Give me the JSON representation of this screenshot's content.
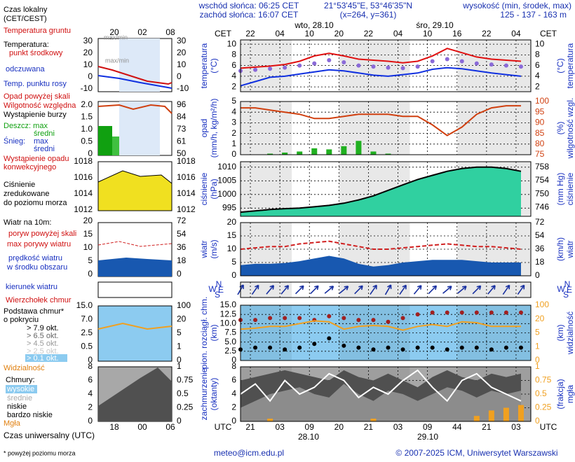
{
  "header": {
    "sunrise": "wschód słońca: 06:25 CET",
    "sunset": "zachód słońca: 16:07 CET",
    "coords": "21°53'45\"E, 53°46'35\"N",
    "grid": "(x=264, y=361)",
    "elevation_title": "wysokość (min, środek, max)",
    "elevation": "125 - 137 - 163 m",
    "days_top": [
      "wto, 28.10",
      "śro, 29.10"
    ],
    "days_bottom": [
      "28.10",
      "29.10"
    ]
  },
  "footer": {
    "email": "meteo@icm.edu.pl",
    "copyright": "© 2007-2025 ICM, Uniwersytet Warszawski",
    "note": "* powyżej poziomu morza"
  },
  "legend": {
    "local_time": [
      "Czas lokalny",
      "(CET/CEST)"
    ],
    "local_ticks": [
      "20",
      "02",
      "08"
    ],
    "utc_time": "Czas uniwersalny (UTC)",
    "utc_ticks": [
      "18",
      "00",
      "06"
    ],
    "temperature": [
      "Temperatura gruntu",
      "max/min",
      "Temperatura:",
      "punkt środkowy",
      "max/min",
      "odczuwana",
      "Temp. punktu rosy"
    ],
    "precipitation": [
      "Opad powyżej skali",
      "Wilgotność względna",
      "Wystąpienie burzy",
      "Deszcz: max",
      "średni",
      "Śnieg:",
      "max",
      "średni",
      "Wystąpienie opadu",
      "konwekcyjnego"
    ],
    "pressure": [
      "Ciśnienie",
      "zredukowane",
      "do poziomu morza"
    ],
    "wind": [
      "Wiatr na 10m:",
      "poryw powyżej skali",
      "max porywy wiatru",
      "prędkość wiatru",
      "w środku obszaru"
    ],
    "direction": "kierunek wiatru",
    "cloud_base": [
      "Wierzchołek chmur",
      "Podstawa chmur*",
      "o pokryciu",
      "> 7.9 okt.",
      "> 6.5 okt.",
      "> 4.5 okt.",
      "> 2.5 okt.",
      "> 0.1 okt.",
      "Widzialność"
    ],
    "clouds": [
      "Chmury:",
      "wysokie",
      "średnie",
      "niskie",
      "bardzo niskie",
      "Mgła"
    ],
    "ticks": [
      {
        "left": [
          "30",
          "20",
          "10",
          "0",
          "-10"
        ],
        "right": [
          "30",
          "20",
          "10",
          "0",
          "-10"
        ]
      },
      {
        "left": [
          "2.0",
          "1.5",
          "1.0",
          "0.5",
          "0"
        ],
        "right": [
          "96",
          "84",
          "73",
          "61",
          "50"
        ]
      },
      {
        "left": [
          "1018",
          "1016",
          "1014",
          "1012"
        ],
        "right": [
          "1018",
          "1016",
          "1014",
          "1012"
        ]
      },
      {
        "left": [
          "20",
          "15",
          "10",
          "5",
          "0"
        ],
        "right": [
          "72",
          "54",
          "36",
          "18",
          "0"
        ]
      },
      {
        "left": [
          "15.0",
          "7.0",
          "2.5",
          "0.5",
          "0"
        ],
        "right": [
          "100",
          "20",
          "5",
          "1",
          "0"
        ]
      },
      {
        "left": [
          "8",
          "6",
          "4",
          "2",
          "0"
        ],
        "right": [
          "1",
          "0.75",
          "0.5",
          "0.25",
          "0"
        ]
      }
    ]
  },
  "chart_data": [
    {
      "type": "line",
      "ylabel": [
        "temperatura",
        "(°C)"
      ],
      "ylabel2": [
        "(°C)",
        "temperatura"
      ],
      "xlabel": "CET",
      "x": [
        0,
        3,
        6,
        9,
        12,
        15,
        18,
        21,
        24,
        27,
        30,
        33,
        36,
        39,
        42,
        45,
        48,
        51,
        54,
        57
      ],
      "xlim": [
        0,
        59
      ],
      "xticks": [
        {
          "value": 2,
          "label": "22"
        },
        {
          "value": 8,
          "label": "04"
        },
        {
          "value": 14,
          "label": "10"
        },
        20,
        {
          "value": 26,
          "label": "22"
        },
        {
          "value": 32,
          "label": "04"
        },
        {
          "value": 38,
          "label": "10"
        },
        {
          "value": 44,
          "label": "16"
        },
        {
          "value": 50,
          "label": "22"
        },
        {
          "value": 56,
          "label": "04"
        }
      ],
      "ylim": [
        1.1,
        10.8
      ],
      "yticks": [
        2,
        4,
        6,
        8,
        10
      ],
      "grid": true,
      "series": [
        {
          "type": "line",
          "color": "#e01010",
          "values": [
            5.5,
            5.7,
            5.9,
            6.2,
            6.8,
            7.8,
            8.3,
            7.8,
            7.2,
            7.0,
            6.8,
            6.5,
            6.8,
            7.8,
            9.2,
            8.4,
            7.6,
            7.2,
            7.0,
            6.8
          ]
        },
        {
          "type": "dots",
          "color": "#8a6ad8",
          "values": [
            5.0,
            5.2,
            5.4,
            5.6,
            6.0,
            6.4,
            7.0,
            6.6,
            6.0,
            5.8,
            5.6,
            5.5,
            5.8,
            6.8,
            7.2,
            6.8,
            6.4,
            6.2,
            6.0,
            5.8
          ]
        },
        {
          "type": "line",
          "color": "#1030e0",
          "values": [
            2.2,
            3.0,
            3.8,
            4.0,
            4.4,
            4.8,
            5.2,
            5.0,
            4.6,
            4.2,
            4.0,
            4.3,
            4.6,
            5.3,
            5.6,
            5.4,
            5.0,
            4.6,
            4.3,
            4.0
          ]
        }
      ]
    },
    {
      "type": "bar",
      "ylabel": [
        "opad",
        "(mm/h, kg/m²/h)"
      ],
      "ylabel2": [
        "(%)",
        "wilgotność wzgl."
      ],
      "x": [
        0,
        3,
        6,
        9,
        12,
        15,
        18,
        21,
        24,
        27,
        30,
        33,
        36,
        39,
        42,
        45,
        48,
        51,
        54,
        57
      ],
      "xlim": [
        0,
        59
      ],
      "ylim": [
        0,
        5
      ],
      "yticks": [
        0,
        1,
        2,
        3,
        4,
        5
      ],
      "y2lim": [
        75,
        100
      ],
      "y2ticks": [
        75,
        80,
        85,
        90,
        95,
        100
      ],
      "grid": true,
      "series": [
        {
          "type": "bar",
          "color": "#20b020",
          "values": [
            0,
            0,
            0.1,
            0.2,
            0.3,
            0.6,
            0.5,
            0.8,
            1.3,
            0.3,
            0.1,
            0,
            0,
            0,
            0,
            0,
            0,
            0,
            0,
            0
          ]
        },
        {
          "type": "line",
          "color": "#d04010",
          "axis": "y2",
          "values": [
            97,
            97,
            96,
            95,
            94,
            92,
            92,
            93,
            94,
            94,
            94,
            93,
            93,
            89,
            84,
            88,
            94,
            97,
            98,
            98
          ]
        }
      ]
    },
    {
      "type": "area",
      "ylabel": [
        "ciśnienie",
        "(hPa)"
      ],
      "ylabel2": [
        "(mm Hg)",
        "ciśnienie"
      ],
      "x": [
        0,
        3,
        6,
        9,
        12,
        15,
        18,
        21,
        24,
        27,
        30,
        33,
        36,
        39,
        42,
        45,
        48,
        51,
        54,
        57
      ],
      "xlim": [
        0,
        59
      ],
      "ylim": [
        992,
        1012
      ],
      "yticks": [
        995,
        1000,
        1005,
        1010
      ],
      "y2lim": [
        743.4,
        759.6
      ],
      "y2ticks": [
        746,
        750,
        754,
        758
      ],
      "grid": true,
      "series": [
        {
          "type": "area",
          "color": "#30d0a0",
          "edge": "#000000",
          "values": [
            993.5,
            994,
            994.5,
            994.8,
            995,
            995.5,
            996,
            996.8,
            998,
            999.5,
            1001.5,
            1003.5,
            1005.5,
            1007,
            1008.5,
            1009.5,
            1010,
            1010,
            1009.5,
            1008.5
          ]
        }
      ]
    },
    {
      "type": "area",
      "ylabel": [
        "wiatr",
        "(m/s)"
      ],
      "ylabel2": [
        "(km/h)",
        "wiatr"
      ],
      "x": [
        0,
        3,
        6,
        9,
        12,
        15,
        18,
        21,
        24,
        27,
        30,
        33,
        36,
        39,
        42,
        45,
        48,
        51,
        54,
        57
      ],
      "xlim": [
        0,
        59
      ],
      "ylim": [
        0,
        20
      ],
      "yticks": [
        0,
        5,
        10,
        15,
        20
      ],
      "y2lim": [
        0,
        72
      ],
      "y2ticks": [
        0,
        18,
        36,
        54,
        72
      ],
      "grid": true,
      "series": [
        {
          "type": "area",
          "color": "#1858b0",
          "values": [
            4,
            4.5,
            4.5,
            4.8,
            5.5,
            6.5,
            7.5,
            6.5,
            4.5,
            3.5,
            4,
            5,
            5.5,
            6,
            6,
            6,
            5.5,
            5,
            5,
            5
          ]
        },
        {
          "type": "line",
          "color": "#d02020",
          "dash": true,
          "values": [
            10,
            10.5,
            11,
            11,
            12,
            12.5,
            13,
            12,
            11,
            10,
            10,
            10.5,
            11,
            11.5,
            12,
            11.5,
            11,
            11,
            10.5,
            10
          ]
        }
      ]
    },
    {
      "type": "arrows",
      "compass": [
        "N",
        "W",
        "E",
        "S"
      ],
      "x": [
        0,
        3,
        6,
        9,
        12,
        15,
        18,
        21,
        24,
        27,
        30,
        33,
        36,
        39,
        42,
        45,
        48,
        51,
        54,
        57
      ],
      "xlim": [
        0,
        59
      ],
      "series": [
        {
          "type": "arrows",
          "color": "#1830a0",
          "values": [
            210,
            215,
            220,
            220,
            225,
            225,
            230,
            230,
            225,
            215,
            210,
            215,
            220,
            225,
            230,
            230,
            225,
            220,
            215,
            215
          ]
        }
      ]
    },
    {
      "type": "scatter",
      "ylabel": [
        "pion. rozciągł. chm.",
        "(km)"
      ],
      "ylabel2": [
        "(km)",
        "widzialność"
      ],
      "x": [
        0,
        3,
        6,
        9,
        12,
        15,
        18,
        21,
        24,
        27,
        30,
        33,
        36,
        39,
        42,
        45,
        48,
        51,
        54,
        57
      ],
      "xlim": [
        0,
        59
      ],
      "ylim": [
        0,
        15
      ],
      "yticks": [
        0,
        2.5,
        {
          "value": 5,
          "label": "5.0"
        },
        7.5,
        {
          "value": 10,
          "label": "10.0"
        },
        12.5,
        {
          "value": 15,
          "label": "15.0"
        }
      ],
      "y2ticks": [
        0,
        1,
        5,
        20,
        100
      ],
      "y2scale": "ticks",
      "grid": true,
      "series": [
        {
          "type": "dots",
          "color": "#a02020",
          "values": [
            11,
            11,
            11.5,
            11.5,
            11.5,
            11,
            12,
            11.5,
            11,
            11,
            10.5,
            11.5,
            12.5,
            13,
            13,
            13,
            13,
            13,
            13,
            13
          ]
        },
        {
          "type": "dots",
          "color": "#000000",
          "values": [
            3,
            3.5,
            3.5,
            3,
            3.5,
            4.5,
            6,
            4,
            3.5,
            3,
            3.5,
            3,
            3.5,
            3.5,
            3,
            3.5,
            3.5,
            3,
            3.5,
            3.5
          ]
        },
        {
          "type": "line",
          "color": "#f0a020",
          "axis": "y2",
          "values": [
            9,
            10,
            12,
            12,
            15,
            18,
            17,
            9,
            12,
            13,
            12,
            8,
            12,
            14,
            12,
            17,
            16,
            12,
            12,
            12
          ]
        }
      ]
    },
    {
      "type": "area",
      "ylabel": [
        "zachmurzenie",
        "(oktanty)"
      ],
      "ylabel2": [
        "(frakcja)",
        "mgła"
      ],
      "xlabel": "UTC",
      "x": [
        0,
        3,
        6,
        9,
        12,
        15,
        18,
        21,
        24,
        27,
        30,
        33,
        36,
        39,
        42,
        45,
        48,
        51,
        54,
        57
      ],
      "xlim": [
        0,
        59
      ],
      "xticks": [
        {
          "value": 2,
          "label": "21"
        },
        {
          "value": 8,
          "label": "03"
        },
        {
          "value": 14,
          "label": "09"
        },
        20,
        {
          "value": 26,
          "label": "21"
        },
        {
          "value": 32,
          "label": "03"
        },
        {
          "value": 38,
          "label": "09"
        },
        44,
        {
          "value": 50,
          "label": "21"
        },
        {
          "value": 56,
          "label": "03"
        }
      ],
      "ylim": [
        0,
        8
      ],
      "yticks": [
        0,
        2,
        4,
        6,
        8
      ],
      "y2lim": [
        0,
        1
      ],
      "y2ticks": [
        0,
        0.25,
        0.5,
        0.75,
        1
      ],
      "grid": true,
      "series": [
        {
          "type": "area",
          "color": "#505050",
          "values": [
            6,
            6.5,
            7,
            7.5,
            7,
            6.5,
            6,
            7.5,
            6.5,
            6,
            7,
            6,
            5,
            6.5,
            7.5,
            6.5,
            6,
            7,
            6.5,
            7
          ]
        },
        {
          "type": "area",
          "color": "#8c8c8c",
          "values": [
            2,
            3,
            4,
            4.5,
            5,
            4,
            3.5,
            5.5,
            4,
            3,
            4.5,
            4,
            3,
            4,
            5,
            4.5,
            3.5,
            4.5,
            4,
            4.5
          ]
        },
        {
          "type": "line",
          "color": "#ffffff",
          "values": [
            4,
            5.5,
            3,
            6,
            4,
            5,
            7,
            6,
            3.5,
            5,
            4,
            6,
            7.5,
            5,
            3,
            6,
            7,
            5,
            4,
            3
          ]
        },
        {
          "type": "bar",
          "color": "#f0a020",
          "axis": "y2",
          "values": [
            0,
            0,
            0.05,
            0,
            0,
            0,
            0,
            0,
            0,
            0.05,
            0,
            0,
            0,
            0,
            0,
            0,
            0.1,
            0.2,
            0.25,
            0.3
          ]
        }
      ]
    }
  ]
}
